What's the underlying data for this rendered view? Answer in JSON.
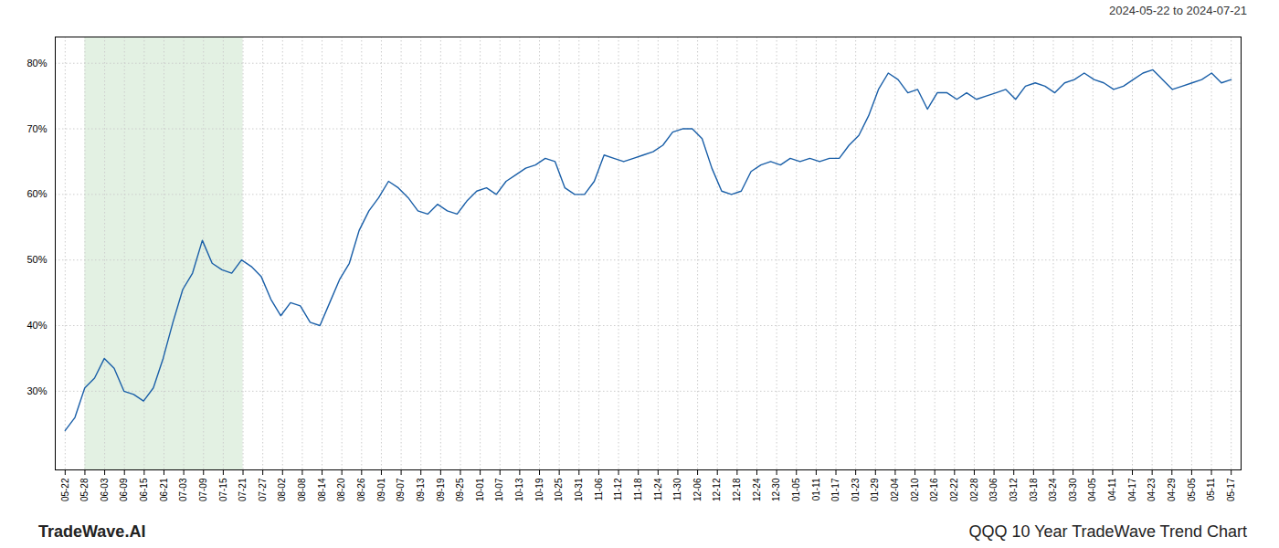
{
  "chart_data": {
    "type": "line",
    "title": "QQQ 10 Year TradeWave Trend Chart",
    "subtitle": "2024-05-22 to 2024-07-21",
    "annotations": [
      "TradeWave.AI"
    ],
    "color": "#1a5fa8",
    "grid": true,
    "shaded_region": {
      "x": [
        1,
        9
      ],
      "color": "#d4ead4"
    },
    "xlim": [
      -0.5,
      59.5
    ],
    "xticks": [
      {
        "value": 0,
        "label": "05-22"
      },
      {
        "value": 1,
        "label": "05-28"
      },
      {
        "value": 2,
        "label": "06-03"
      },
      {
        "value": 3,
        "label": "06-09"
      },
      {
        "value": 4,
        "label": "06-15"
      },
      {
        "value": 5,
        "label": "06-21"
      },
      {
        "value": 6,
        "label": "07-03"
      },
      {
        "value": 7,
        "label": "07-09"
      },
      {
        "value": 8,
        "label": "07-15"
      },
      {
        "value": 9,
        "label": "07-21"
      },
      {
        "value": 10,
        "label": "07-27"
      },
      {
        "value": 11,
        "label": "08-02"
      },
      {
        "value": 12,
        "label": "08-08"
      },
      {
        "value": 13,
        "label": "08-14"
      },
      {
        "value": 14,
        "label": "08-20"
      },
      {
        "value": 15,
        "label": "08-26"
      },
      {
        "value": 16,
        "label": "09-01"
      },
      {
        "value": 17,
        "label": "09-07"
      },
      {
        "value": 18,
        "label": "09-13"
      },
      {
        "value": 19,
        "label": "09-19"
      },
      {
        "value": 20,
        "label": "09-25"
      },
      {
        "value": 21,
        "label": "10-01"
      },
      {
        "value": 22,
        "label": "10-07"
      },
      {
        "value": 23,
        "label": "10-13"
      },
      {
        "value": 24,
        "label": "10-19"
      },
      {
        "value": 25,
        "label": "10-25"
      },
      {
        "value": 26,
        "label": "10-31"
      },
      {
        "value": 27,
        "label": "11-06"
      },
      {
        "value": 28,
        "label": "11-12"
      },
      {
        "value": 29,
        "label": "11-18"
      },
      {
        "value": 30,
        "label": "11-24"
      },
      {
        "value": 31,
        "label": "11-30"
      },
      {
        "value": 32,
        "label": "12-06"
      },
      {
        "value": 33,
        "label": "12-12"
      },
      {
        "value": 34,
        "label": "12-18"
      },
      {
        "value": 35,
        "label": "12-24"
      },
      {
        "value": 36,
        "label": "12-30"
      },
      {
        "value": 37,
        "label": "01-05"
      },
      {
        "value": 38,
        "label": "01-11"
      },
      {
        "value": 39,
        "label": "01-17"
      },
      {
        "value": 40,
        "label": "01-23"
      },
      {
        "value": 41,
        "label": "01-29"
      },
      {
        "value": 42,
        "label": "02-04"
      },
      {
        "value": 43,
        "label": "02-10"
      },
      {
        "value": 44,
        "label": "02-16"
      },
      {
        "value": 45,
        "label": "02-22"
      },
      {
        "value": 46,
        "label": "02-28"
      },
      {
        "value": 47,
        "label": "03-06"
      },
      {
        "value": 48,
        "label": "03-12"
      },
      {
        "value": 49,
        "label": "03-18"
      },
      {
        "value": 50,
        "label": "03-24"
      },
      {
        "value": 51,
        "label": "03-30"
      },
      {
        "value": 52,
        "label": "04-05"
      },
      {
        "value": 53,
        "label": "04-11"
      },
      {
        "value": 54,
        "label": "04-17"
      },
      {
        "value": 55,
        "label": "04-23"
      },
      {
        "value": 56,
        "label": "04-29"
      },
      {
        "value": 57,
        "label": "05-05"
      },
      {
        "value": 58,
        "label": "05-11"
      },
      {
        "value": 59,
        "label": "05-17"
      }
    ],
    "ylim": [
      18,
      84
    ],
    "yticks": [
      {
        "value": 30,
        "label": "30%"
      },
      {
        "value": 40,
        "label": "40%"
      },
      {
        "value": 50,
        "label": "50%"
      },
      {
        "value": 60,
        "label": "60%"
      },
      {
        "value": 70,
        "label": "70%"
      },
      {
        "value": 80,
        "label": "80%"
      }
    ],
    "x": [
      0,
      0.4958,
      0.9916,
      1.4874,
      1.9832,
      2.479,
      2.9748,
      3.4706,
      3.9664,
      4.4622,
      4.958,
      5.4538,
      5.9496,
      6.4454,
      6.9412,
      7.437,
      7.9328,
      8.4286,
      8.9244,
      9.4202,
      9.916,
      10.4118,
      10.9076,
      11.4034,
      11.8992,
      12.395,
      12.8908,
      13.3866,
      13.8824,
      14.3782,
      14.8739,
      15.3697,
      15.8655,
      16.3613,
      16.8571,
      17.3529,
      17.8487,
      18.3445,
      18.8403,
      19.3361,
      19.8319,
      20.3277,
      20.8235,
      21.3193,
      21.8151,
      22.3109,
      22.8067,
      23.3025,
      23.7983,
      24.2941,
      24.7899,
      25.2857,
      25.7815,
      26.2773,
      26.7731,
      27.2689,
      27.7647,
      28.2605,
      28.7563,
      29.2521,
      29.7479,
      30.2437,
      30.7395,
      31.2353,
      31.7311,
      32.2269,
      32.7227,
      33.2185,
      33.7143,
      34.2101,
      34.7059,
      35.2017,
      35.6975,
      36.1933,
      36.6891,
      37.1849,
      37.6807,
      38.1765,
      38.6723,
      39.1681,
      39.6639,
      40.1597,
      40.6555,
      41.1513,
      41.6471,
      42.1429,
      42.6387,
      43.1345,
      43.6303,
      44.1261,
      44.6218,
      45.1176,
      45.6134,
      46.1092,
      46.605,
      47.1008,
      47.5966,
      48.0924,
      48.5882,
      49.084,
      49.5798,
      50.0756,
      50.5714,
      51.0672,
      51.563,
      52.0588,
      52.5546,
      53.0504,
      53.5462,
      54.042,
      54.5378,
      55.0336,
      55.5294,
      56.0252,
      56.521,
      57.0168,
      57.5126,
      58.0084,
      58.5042,
      59
    ],
    "values": [
      24.0,
      26.0,
      30.5,
      32.0,
      35.0,
      33.5,
      30.0,
      29.5,
      28.5,
      30.5,
      35.0,
      40.5,
      45.5,
      48.0,
      53.0,
      49.5,
      48.5,
      48.0,
      50.0,
      49.0,
      47.5,
      44.0,
      41.5,
      43.5,
      43.0,
      40.5,
      40.0,
      43.5,
      47.0,
      49.5,
      54.5,
      57.5,
      59.5,
      62.0,
      61.0,
      59.5,
      57.5,
      57.0,
      58.5,
      57.5,
      57.0,
      59.0,
      60.5,
      61.0,
      60.0,
      62.0,
      63.0,
      64.0,
      64.5,
      65.5,
      65.0,
      61.0,
      60.0,
      60.0,
      62.0,
      66.0,
      65.5,
      65.0,
      65.5,
      66.0,
      66.5,
      67.5,
      69.5,
      70.0,
      70.0,
      68.5,
      64.0,
      60.5,
      60.0,
      60.5,
      63.5,
      64.5,
      65.0,
      64.5,
      65.5,
      65.0,
      65.5,
      65.0,
      65.5,
      65.5,
      67.5,
      69.0,
      72.0,
      76.0,
      78.5,
      77.5,
      75.5,
      76.0,
      73.0,
      75.5,
      75.5,
      74.5,
      75.5,
      74.5,
      75.0,
      75.5,
      76.0,
      74.5,
      76.5,
      77.0,
      76.5,
      75.5,
      77.0,
      77.5,
      78.5,
      77.5,
      77.0,
      76.0,
      76.5,
      77.5,
      78.5,
      79.0,
      77.5,
      76.0,
      76.5,
      77.0,
      77.5,
      78.5,
      77.0,
      77.5
    ]
  }
}
